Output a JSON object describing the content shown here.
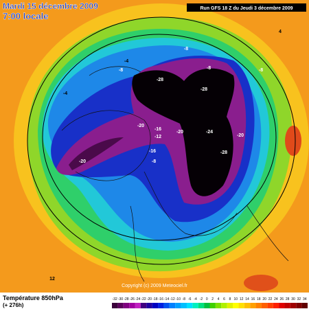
{
  "header": {
    "date": "Mardi 15 décembre 2009",
    "time": "7:00 locale",
    "run": "Run GFS 18 Z du Jeudi 3 décembre 2009"
  },
  "footer": {
    "field": "Température 850hPa",
    "lead": "(+ 276h)",
    "copyright": "Copyright (c) 2009 Meteociel.fr"
  },
  "scale": {
    "labels": [
      "-32",
      "-30",
      "-28",
      "-26",
      "-24",
      "-22",
      "-20",
      "-18",
      "-16",
      "-14",
      "-12",
      "-10",
      "-8",
      "-6",
      "-4",
      "-2",
      "0",
      "2",
      "4",
      "6",
      "8",
      "10",
      "12",
      "14",
      "16",
      "18",
      "20",
      "22",
      "24",
      "26",
      "28",
      "30",
      "32",
      "34"
    ]
  },
  "contour_labels": [
    -28,
    -28,
    -28,
    -24,
    -20,
    -20,
    -20,
    -20,
    -16,
    -16,
    -12,
    -8,
    -8,
    -8,
    -8,
    -8,
    -4,
    -4,
    12,
    4
  ]
}
